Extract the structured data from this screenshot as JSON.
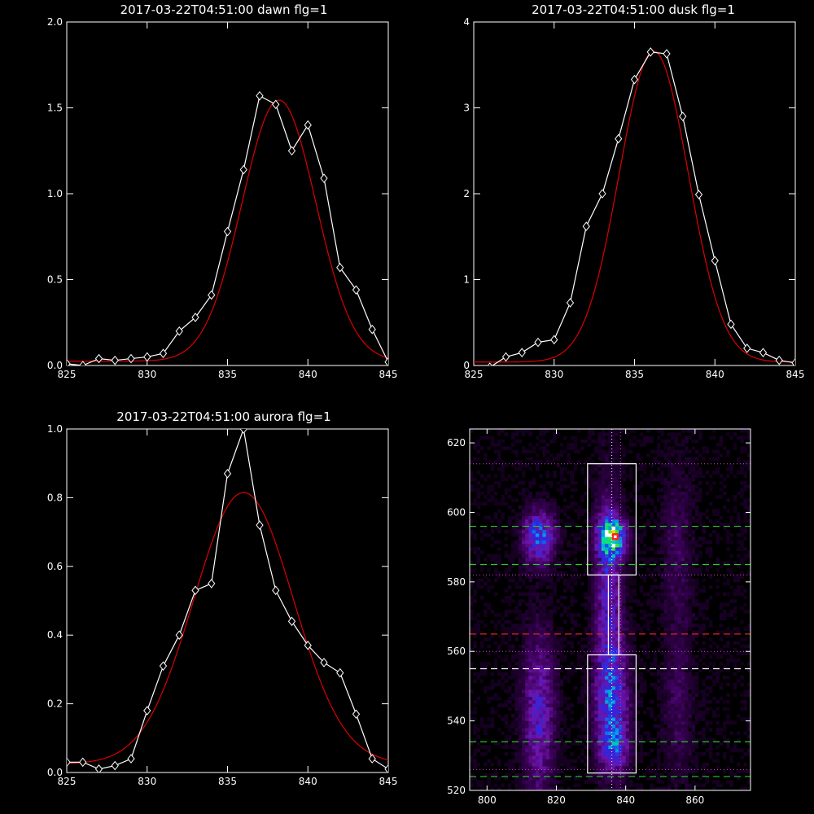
{
  "colors": {
    "background": "#000000",
    "axes": "#ffffff",
    "data_line": "#ffffff",
    "fit_line": "#dd0000",
    "green_dash": "#22cc22",
    "red_dash": "#dd2222",
    "magenta_dot": "#cc44cc",
    "box": "#ffffff"
  },
  "chart_data": [
    {
      "type": "line",
      "title": "2017-03-22T04:51:00 dawn flg=1",
      "xlim": [
        825,
        845
      ],
      "ylim": [
        0,
        2.0
      ],
      "xticks": [
        "825",
        "830",
        "835",
        "840",
        "845"
      ],
      "yticks": [
        "0.0",
        "0.5",
        "1.0",
        "1.5",
        "2.0"
      ],
      "series": [
        {
          "role": "data",
          "marker": "diamond",
          "x": [
            825,
            826,
            827,
            828,
            829,
            830,
            831,
            832,
            833,
            834,
            835,
            836,
            837,
            838,
            839,
            840,
            841,
            842,
            843,
            844,
            845
          ],
          "y": [
            0.01,
            0.0,
            0.04,
            0.03,
            0.04,
            0.05,
            0.07,
            0.2,
            0.28,
            0.41,
            0.78,
            1.14,
            1.57,
            1.52,
            1.25,
            1.4,
            1.09,
            0.57,
            0.44,
            0.21,
            0.02
          ]
        },
        {
          "role": "fit",
          "shape": "gaussian",
          "amplitude": 1.52,
          "center": 838.2,
          "sigma": 2.3,
          "offset": 0.025
        }
      ]
    },
    {
      "type": "line",
      "title": "2017-03-22T04:51:00 dusk flg=1",
      "xlim": [
        825,
        845
      ],
      "ylim": [
        0,
        4
      ],
      "xticks": [
        "825",
        "830",
        "835",
        "840",
        "845"
      ],
      "yticks": [
        "0",
        "1",
        "2",
        "3",
        "4"
      ],
      "series": [
        {
          "role": "data",
          "marker": "diamond",
          "x": [
            825,
            826,
            827,
            828,
            829,
            830,
            831,
            832,
            833,
            834,
            835,
            836,
            837,
            838,
            839,
            840,
            841,
            842,
            843,
            844,
            845
          ],
          "y": [
            -0.05,
            -0.02,
            0.1,
            0.15,
            0.27,
            0.3,
            0.73,
            1.62,
            2.0,
            2.64,
            3.33,
            3.65,
            3.63,
            2.9,
            1.99,
            1.22,
            0.48,
            0.2,
            0.15,
            0.06,
            0.03
          ]
        },
        {
          "role": "fit",
          "shape": "gaussian",
          "amplitude": 3.62,
          "center": 836.2,
          "sigma": 2.15,
          "offset": 0.04
        }
      ]
    },
    {
      "type": "line",
      "title": "2017-03-22T04:51:00 aurora flg=1",
      "xlim": [
        825,
        845
      ],
      "ylim": [
        0,
        1.0
      ],
      "xticks": [
        "825",
        "830",
        "835",
        "840",
        "845"
      ],
      "yticks": [
        "0.0",
        "0.2",
        "0.4",
        "0.6",
        "0.8",
        "1.0"
      ],
      "series": [
        {
          "role": "data",
          "marker": "diamond",
          "x": [
            825,
            826,
            827,
            828,
            829,
            830,
            831,
            832,
            833,
            834,
            835,
            836,
            837,
            838,
            839,
            840,
            841,
            842,
            843,
            844,
            845
          ],
          "y": [
            0.03,
            0.03,
            0.01,
            0.02,
            0.04,
            0.18,
            0.31,
            0.4,
            0.53,
            0.55,
            0.87,
            1.0,
            0.72,
            0.53,
            0.44,
            0.37,
            0.32,
            0.29,
            0.17,
            0.04,
            0.01
          ]
        },
        {
          "role": "fit",
          "shape": "gaussian",
          "amplitude": 0.79,
          "center": 836.0,
          "sigma": 3.1,
          "offset": 0.025
        }
      ]
    },
    {
      "type": "heatmap",
      "title": "",
      "xlim": [
        795,
        876
      ],
      "ylim": [
        520,
        624
      ],
      "xticks": [
        "800",
        "820",
        "840",
        "860"
      ],
      "yticks": [
        "520",
        "540",
        "560",
        "580",
        "600",
        "620"
      ],
      "peak": {
        "x": 837,
        "y": 593
      },
      "blobs": [
        {
          "x": 836,
          "y": 593,
          "sx": 2.5,
          "sy": 3.5,
          "amp": 1.0
        },
        {
          "x": 835,
          "y": 580,
          "sx": 2.5,
          "sy": 18,
          "amp": 0.35
        },
        {
          "x": 836,
          "y": 545,
          "sx": 3.2,
          "sy": 12,
          "amp": 0.5
        },
        {
          "x": 837,
          "y": 532,
          "sx": 2.5,
          "sy": 4,
          "amp": 0.3
        },
        {
          "x": 815,
          "y": 593,
          "sx": 3.0,
          "sy": 5,
          "amp": 0.55
        },
        {
          "x": 815,
          "y": 542,
          "sx": 3.0,
          "sy": 15,
          "amp": 0.35
        },
        {
          "x": 855,
          "y": 590,
          "sx": 3.0,
          "sy": 15,
          "amp": 0.12
        },
        {
          "x": 855,
          "y": 545,
          "sx": 3.0,
          "sy": 15,
          "amp": 0.12
        }
      ],
      "boxes": [
        {
          "x": [
            829,
            843
          ],
          "y": [
            582,
            614
          ]
        },
        {
          "x": [
            829,
            843
          ],
          "y": [
            525,
            559
          ]
        }
      ],
      "connector": {
        "x": [
          835,
          838
        ],
        "y": [
          559,
          582
        ]
      },
      "h_dashed_green": [
        524,
        534,
        585,
        596
      ],
      "h_dashed_red": [
        565
      ],
      "h_dashed_white": [
        555
      ],
      "h_dotted_magenta": [
        526,
        560,
        582,
        614
      ],
      "v_dotted": [
        {
          "x": 836,
          "color": "white"
        },
        {
          "x": 838.5,
          "color": "magenta"
        }
      ]
    }
  ]
}
